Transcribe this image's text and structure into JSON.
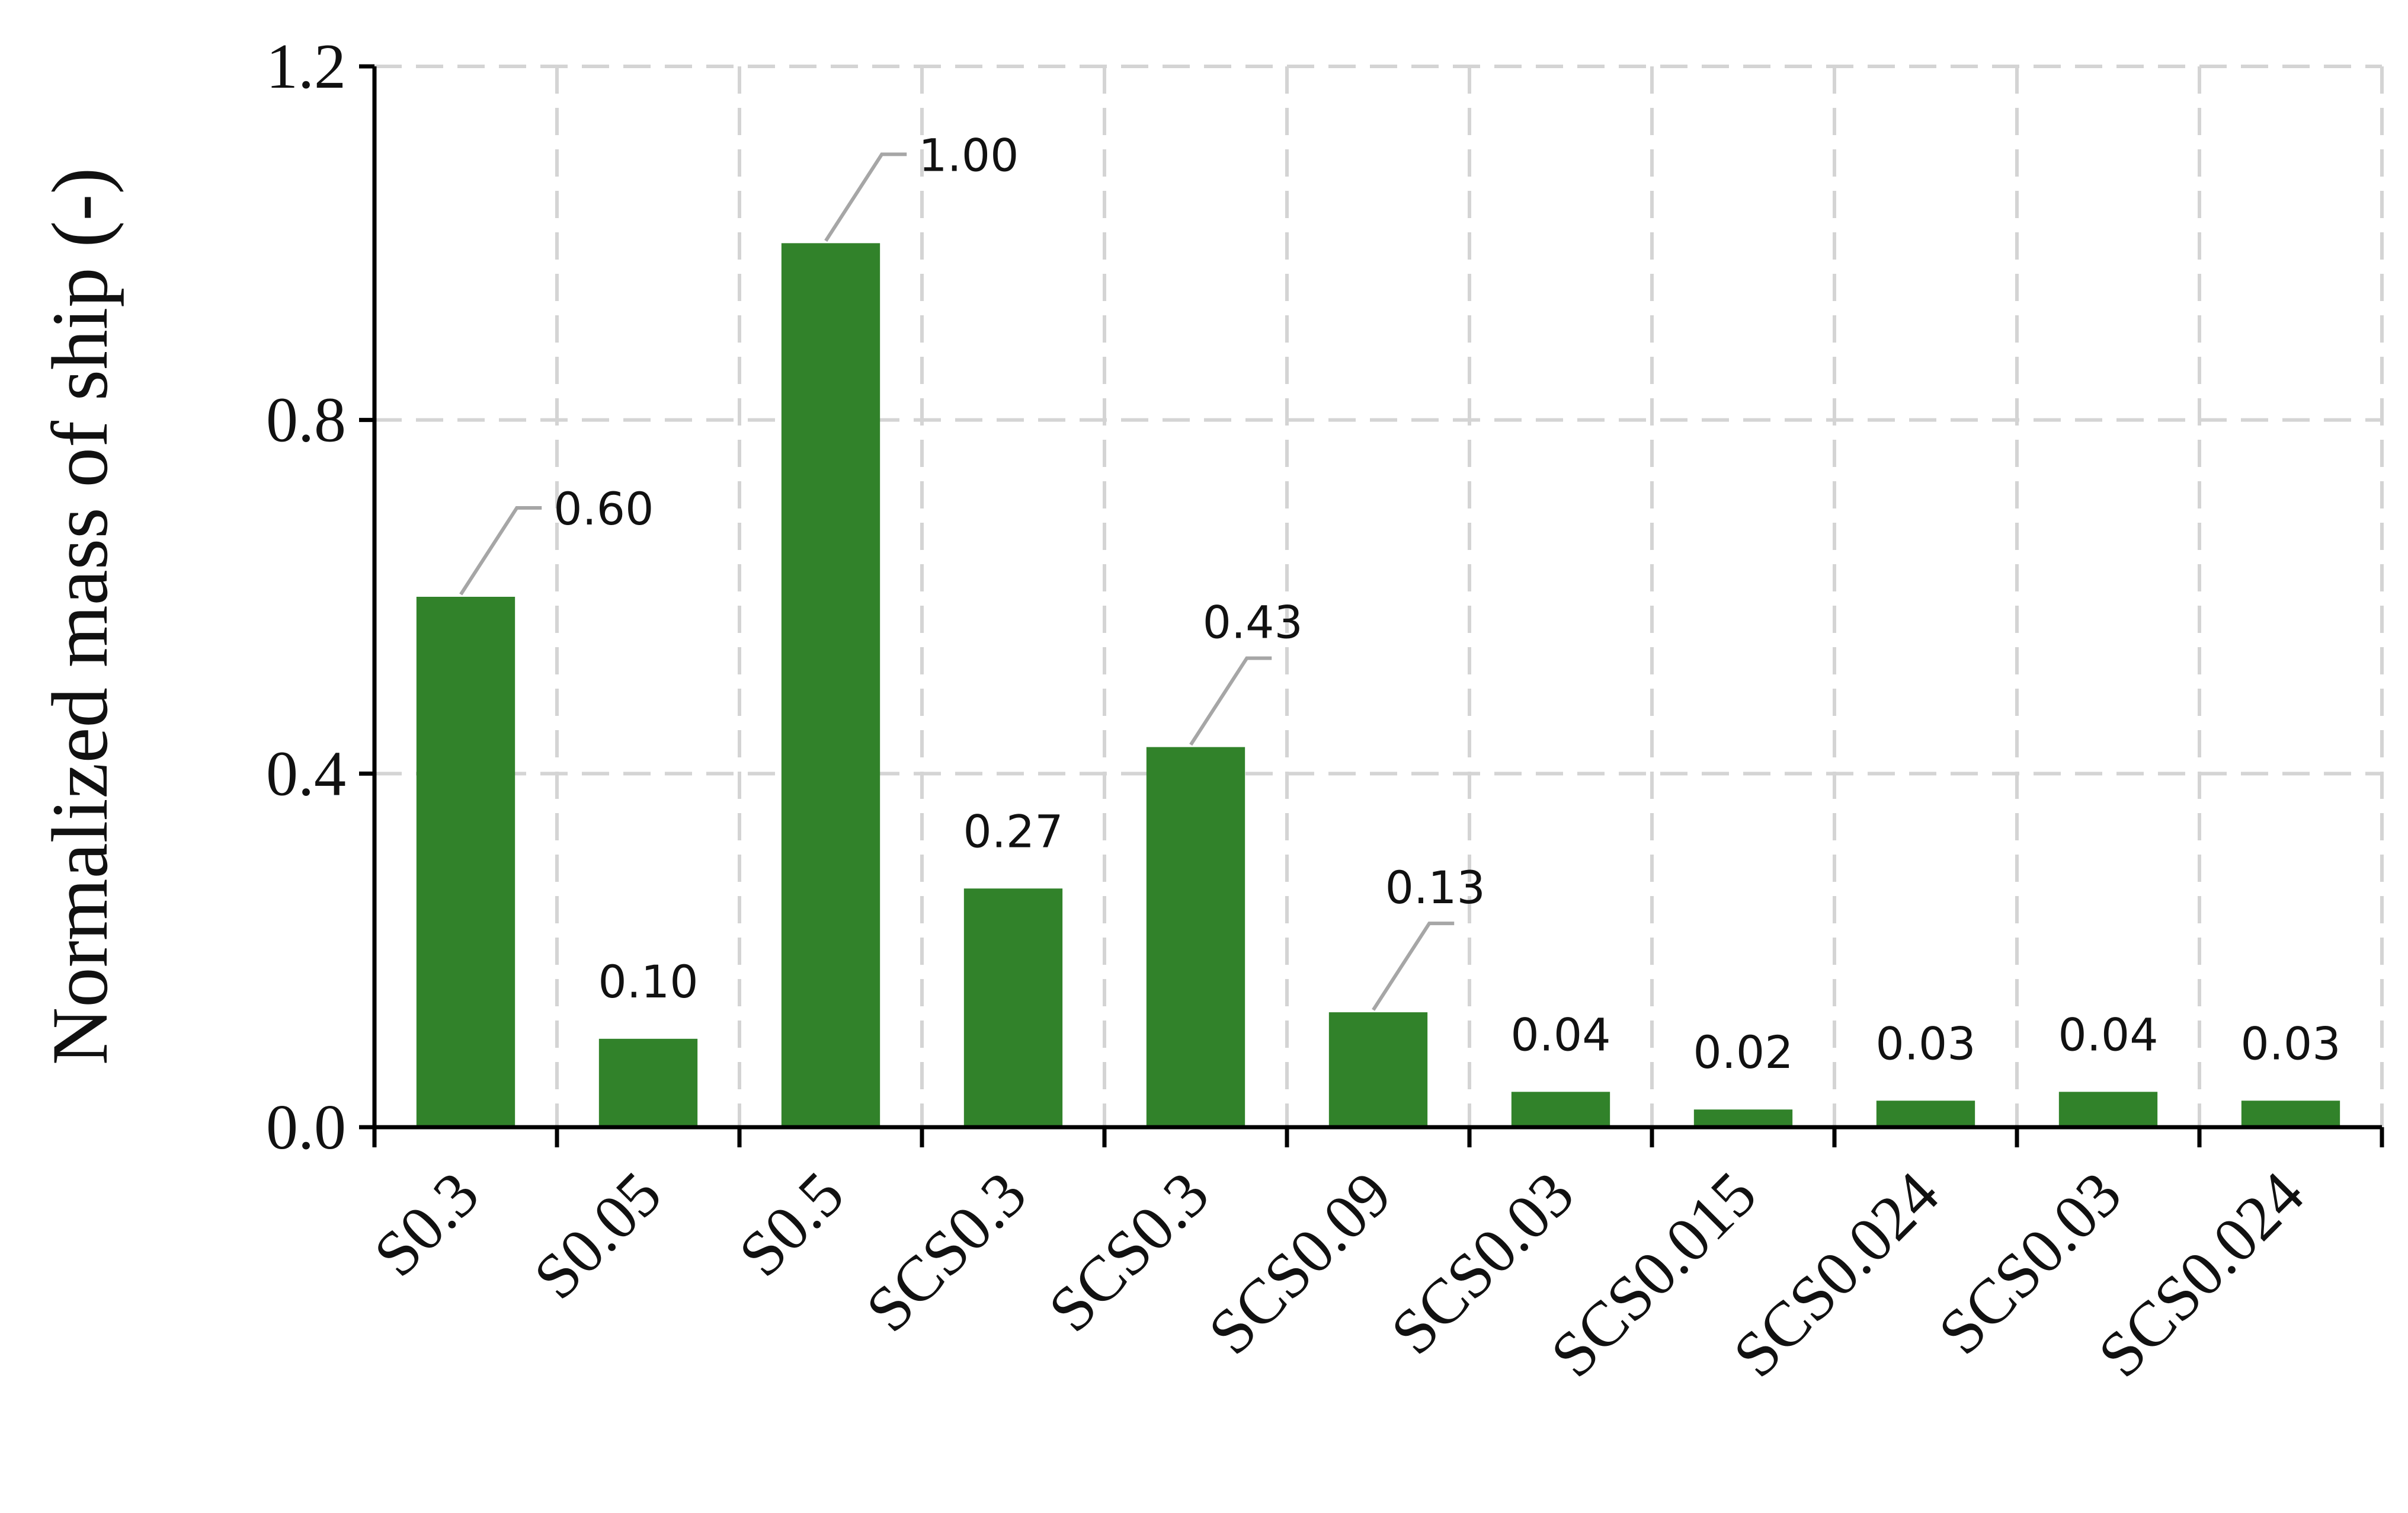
{
  "chart_data": {
    "type": "bar",
    "title": "",
    "xlabel": "",
    "ylabel": "Normalized mass of ship (-)",
    "ylim": [
      0,
      1.2
    ],
    "yticks": [
      "0.0",
      "0.4",
      "0.8",
      "1.2"
    ],
    "grid": true,
    "categories": [
      "S0.3",
      "S0.05",
      "S0.5",
      "SCS0.3",
      "SCS0.3",
      "SCS0.09",
      "SCS0.03",
      "SCS0.015",
      "SCS0.024",
      "SCS0.03",
      "SCS0.024"
    ],
    "values": [
      0.6,
      0.1,
      1.0,
      0.27,
      0.43,
      0.13,
      0.04,
      0.02,
      0.03,
      0.04,
      0.03
    ],
    "data_labels": [
      "0.60",
      "0.10",
      "1.00",
      "0.27",
      "0.43",
      "0.13",
      "0.04",
      "0.02",
      "0.03",
      "0.04",
      "0.03"
    ],
    "bar_color": "#31822a"
  }
}
